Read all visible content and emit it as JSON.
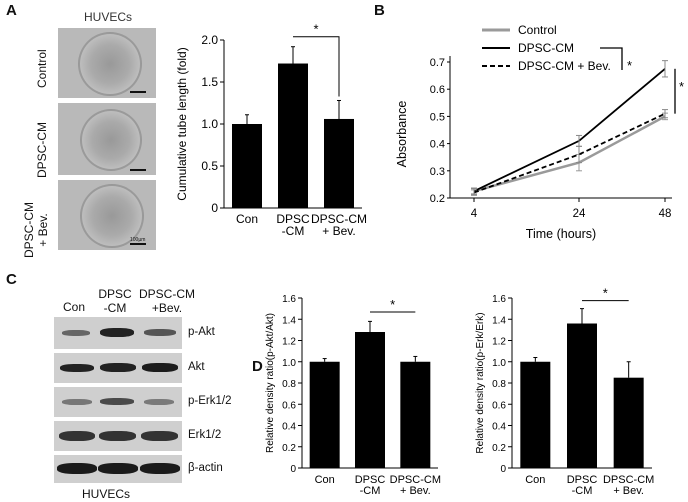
{
  "panels": {
    "a": "A",
    "b": "B",
    "c": "C",
    "d": "D"
  },
  "panel_a": {
    "micro_title": "HUVECs",
    "row_labels": [
      "Control",
      "DPSC-CM",
      "DPSC-CM\n+ Bev."
    ],
    "scale_text": "100µm",
    "significance": "*"
  },
  "panel_c": {
    "column_labels": [
      "Con",
      "DPSC\n-CM",
      "DPSC-CM\n+Bev."
    ],
    "blots": [
      "p-Akt",
      "Akt",
      "p-Erk1/2",
      "Erk1/2",
      "β-actin"
    ],
    "footer": "HUVECs"
  },
  "chart_data": [
    {
      "id": "A",
      "type": "bar",
      "categories": [
        "Con",
        "DPSC\n-CM",
        "DPSC-CM\n+ Bev."
      ],
      "values": [
        1.0,
        1.72,
        1.06
      ],
      "errors": [
        0.11,
        0.2,
        0.22
      ],
      "ylabel": "Cumulative tube length (fold)",
      "ylim": [
        0,
        2.0
      ],
      "yticks": [
        "0",
        "0.5",
        "1.0",
        "1.5",
        "2.0"
      ],
      "significance": {
        "between": [
          1,
          2
        ],
        "label": "*"
      }
    },
    {
      "id": "B",
      "type": "line",
      "x": [
        4,
        24,
        48
      ],
      "xticks": [
        "4",
        "24",
        "48"
      ],
      "xlabel": "Time (hours)",
      "ylabel": "Absorbance",
      "ylim": [
        0.2,
        0.7
      ],
      "yticks": [
        "0.2",
        "0.3",
        "0.4",
        "0.5",
        "0.6",
        "0.7"
      ],
      "series": [
        {
          "name": "Control",
          "values": [
            0.225,
            0.33,
            0.5
          ],
          "errors": [
            0.012,
            0.03,
            0.012
          ],
          "color": "#9a9a9a",
          "style": "solid"
        },
        {
          "name": "DPSC-CM",
          "values": [
            0.225,
            0.41,
            0.675
          ],
          "errors": [
            0.01,
            0.02,
            0.03
          ],
          "color": "#000000",
          "style": "solid"
        },
        {
          "name": "DPSC-CM + Bev.",
          "values": [
            0.22,
            0.36,
            0.51
          ],
          "errors": [
            0.01,
            0.03,
            0.015
          ],
          "color": "#000000",
          "style": "dashed"
        }
      ],
      "significance": [
        "*",
        "*"
      ]
    },
    {
      "id": "D-left",
      "type": "bar",
      "categories": [
        "Con",
        "DPSC\n-CM",
        "DPSC-CM\n+ Bev."
      ],
      "values": [
        1.0,
        1.28,
        1.0
      ],
      "errors": [
        0.03,
        0.1,
        0.05
      ],
      "ylabel": "Relative density ratio(p-Akt/Akt)",
      "ylim": [
        0,
        1.6
      ],
      "yticks": [
        "0",
        "0.2",
        "0.4",
        "0.6",
        "0.8",
        "1.0",
        "1.2",
        "1.4",
        "1.6"
      ],
      "significance": {
        "between": [
          1,
          2
        ],
        "label": "*"
      }
    },
    {
      "id": "D-right",
      "type": "bar",
      "categories": [
        "Con",
        "DPSC\n-CM",
        "DPSC-CM\n+ Bev."
      ],
      "values": [
        1.0,
        1.36,
        0.85
      ],
      "errors": [
        0.04,
        0.14,
        0.15
      ],
      "ylabel": "Relative density ratio(p-Erk/Erk)",
      "ylim": [
        0,
        1.6
      ],
      "yticks": [
        "0",
        "0.2",
        "0.4",
        "0.6",
        "0.8",
        "1.0",
        "1.2",
        "1.4",
        "1.6"
      ],
      "significance": {
        "between": [
          1,
          2
        ],
        "label": "*"
      }
    }
  ]
}
